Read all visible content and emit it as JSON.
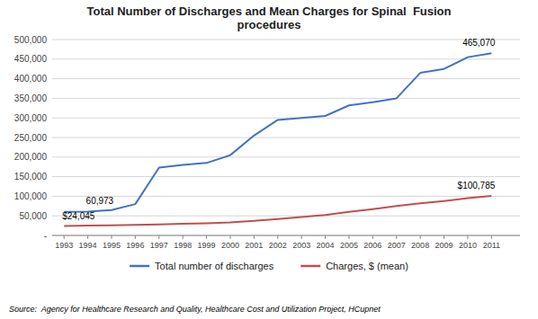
{
  "chart_data": {
    "type": "line",
    "title": "Total Number of Discharges and Mean Charges for Spinal  Fusion\nprocedures",
    "x": [
      1993,
      1994,
      1995,
      1996,
      1997,
      1998,
      1999,
      2000,
      2001,
      2002,
      2003,
      2004,
      2005,
      2006,
      2007,
      2008,
      2009,
      2010,
      2011
    ],
    "series": [
      {
        "name": "Total number of discharges",
        "color": "#4472C4",
        "values": [
          60000,
          60973,
          65000,
          80000,
          173000,
          180000,
          185000,
          205000,
          255000,
          295000,
          300000,
          305000,
          332000,
          340000,
          350000,
          415000,
          425000,
          455000,
          465070
        ],
        "value_labels": [
          null,
          "60,973",
          null,
          null,
          null,
          null,
          null,
          null,
          null,
          null,
          null,
          null,
          null,
          null,
          null,
          null,
          null,
          null,
          "465,070"
        ]
      },
      {
        "name": "Charges, $ (mean)",
        "color": "#C0504D",
        "values": [
          24045,
          25000,
          26000,
          27000,
          28000,
          30000,
          31000,
          33000,
          37000,
          42000,
          47000,
          52000,
          60000,
          67000,
          75000,
          82000,
          88000,
          95000,
          100785
        ],
        "value_labels": [
          "$24,045",
          null,
          null,
          null,
          null,
          null,
          null,
          null,
          null,
          null,
          null,
          null,
          null,
          null,
          null,
          null,
          null,
          null,
          "$100,785"
        ]
      }
    ],
    "xlim": [
      1992.5,
      2012.2
    ],
    "xticks": [
      1993,
      1994,
      1995,
      1996,
      1997,
      1998,
      1999,
      2000,
      2001,
      2002,
      2003,
      2004,
      2005,
      2006,
      2007,
      2008,
      2009,
      2010,
      2011
    ],
    "ylim": [
      0,
      500000
    ],
    "yticks": [
      {
        "value": 0,
        "label": "-"
      },
      {
        "value": 50000,
        "label": "50,000"
      },
      {
        "value": 100000,
        "label": "100,000"
      },
      {
        "value": 150000,
        "label": "150,000"
      },
      {
        "value": 200000,
        "label": "200,000"
      },
      {
        "value": 250000,
        "label": "250,000"
      },
      {
        "value": 300000,
        "label": "300,000"
      },
      {
        "value": 350000,
        "label": "350,000"
      },
      {
        "value": 400000,
        "label": "400,000"
      },
      {
        "value": 450000,
        "label": "450,000"
      },
      {
        "value": 500000,
        "label": "500,000"
      }
    ],
    "grid": true,
    "legend": "bottom",
    "source": "Source:  Agency for Healthcare Research and Quality, Healthcare Cost and Utilization Project, HCupnet"
  }
}
